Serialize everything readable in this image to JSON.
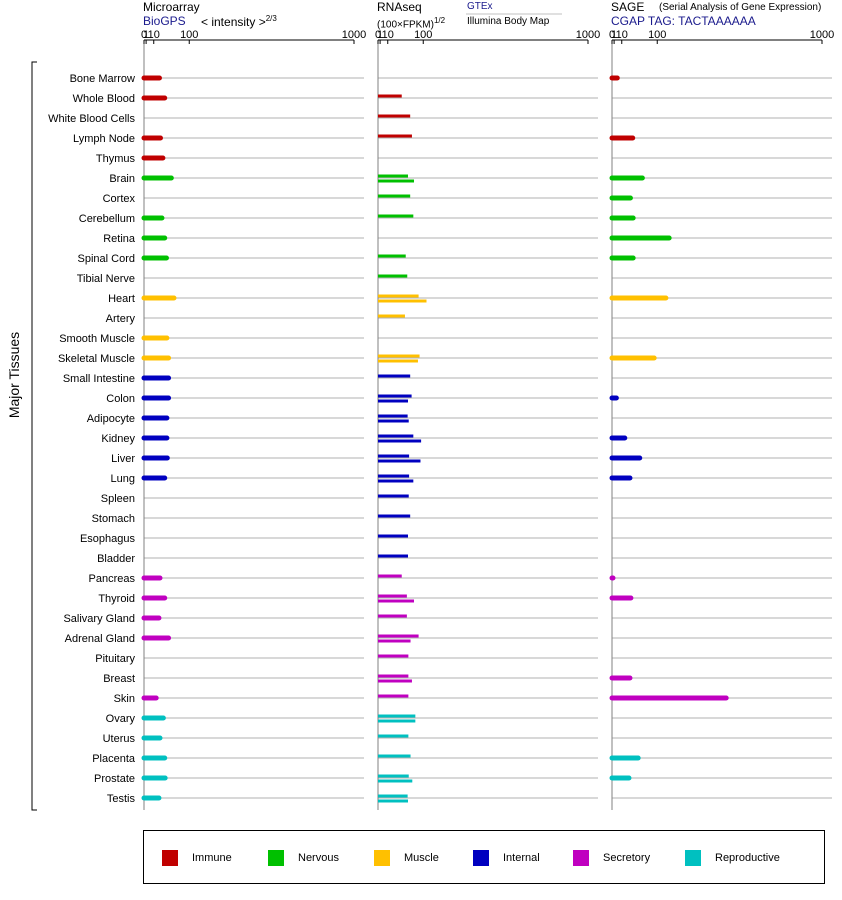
{
  "headers": {
    "microarray": {
      "title": "Microarray",
      "source": "BioGPS",
      "unit_main": "< intensity >",
      "unit_exp": "2/3"
    },
    "rnaseq": {
      "title": "RNAseq",
      "unit_main": "(100×FPKM)",
      "unit_exp": "1/2",
      "source_1": "GTEx",
      "source_2": "Illumina Body Map"
    },
    "sage": {
      "title": "SAGE",
      "subtitle": "(Serial Analysis of Gene Expression)",
      "source": "CGAP TAG: TACTAAAAAA"
    }
  },
  "axis_label": "Major Tissues",
  "colors": {
    "Immune": "#c00000",
    "Nervous": "#00c000",
    "Muscle": "#ffc000",
    "Internal": "#0000c0",
    "Secretory": "#c000c0",
    "Reproductive": "#00c0c0"
  },
  "legend": [
    {
      "label": "Immune",
      "color": "#c00000"
    },
    {
      "label": "Nervous",
      "color": "#00c000"
    },
    {
      "label": "Muscle",
      "color": "#ffc000"
    },
    {
      "label": "Internal",
      "color": "#0000c0"
    },
    {
      "label": "Secretory",
      "color": "#c000c0"
    },
    {
      "label": "Reproductive",
      "color": "#00c0c0"
    }
  ],
  "chart_data": {
    "type": "bar",
    "scale": "power (ticks 0, 1, 10, 100, 1000)",
    "categories": [
      "Bone Marrow",
      "Whole Blood",
      "White Blood Cells",
      "Lymph Node",
      "Thymus",
      "Brain",
      "Cortex",
      "Cerebellum",
      "Retina",
      "Spinal Cord",
      "Tibial Nerve",
      "Heart",
      "Artery",
      "Smooth Muscle",
      "Skeletal Muscle",
      "Small Intestine",
      "Colon",
      "Adipocyte",
      "Kidney",
      "Liver",
      "Lung",
      "Spleen",
      "Stomach",
      "Esophagus",
      "Bladder",
      "Pancreas",
      "Thyroid",
      "Salivary Gland",
      "Adrenal Gland",
      "Pituitary",
      "Breast",
      "Skin",
      "Ovary",
      "Uterus",
      "Placenta",
      "Prostate",
      "Testis"
    ],
    "groups": [
      "Immune",
      "Immune",
      "Immune",
      "Immune",
      "Immune",
      "Nervous",
      "Nervous",
      "Nervous",
      "Nervous",
      "Nervous",
      "Nervous",
      "Muscle",
      "Muscle",
      "Muscle",
      "Muscle",
      "Internal",
      "Internal",
      "Internal",
      "Internal",
      "Internal",
      "Internal",
      "Internal",
      "Internal",
      "Internal",
      "Internal",
      "Secretory",
      "Secretory",
      "Secretory",
      "Secretory",
      "Secretory",
      "Secretory",
      "Secretory",
      "Reproductive",
      "Reproductive",
      "Reproductive",
      "Reproductive",
      "Reproductive"
    ],
    "panels": [
      {
        "name": "Microarray",
        "ticks": [
          0,
          1,
          10,
          100,
          1000
        ],
        "values": [
          20,
          31,
          null,
          22,
          27,
          47,
          null,
          25,
          31,
          35,
          null,
          54,
          null,
          36,
          40,
          40,
          40,
          36,
          36,
          37,
          31,
          null,
          null,
          null,
          null,
          21,
          31,
          19,
          40,
          null,
          null,
          14,
          28,
          21,
          31,
          32,
          19
        ]
      },
      {
        "name": "RNAseq GTEx",
        "ticks": [
          0,
          1,
          10,
          100,
          1000
        ],
        "values": [
          null,
          38,
          60,
          65,
          null,
          54,
          60,
          69,
          null,
          48,
          52,
          85,
          46,
          null,
          88,
          60,
          64,
          53,
          69,
          57,
          57,
          56,
          60,
          54,
          54,
          38,
          51,
          51,
          85,
          55,
          55,
          55,
          75,
          55,
          61,
          56,
          53
        ]
      },
      {
        "name": "RNAseq Illumina Body Map",
        "ticks": [
          0,
          1,
          10,
          100,
          1000
        ],
        "values": [
          null,
          null,
          null,
          null,
          null,
          71,
          null,
          null,
          null,
          null,
          null,
          111,
          null,
          null,
          83,
          null,
          54,
          56,
          93,
          91,
          69,
          null,
          null,
          null,
          null,
          null,
          71,
          null,
          61,
          null,
          65,
          null,
          75,
          null,
          null,
          66,
          54
        ]
      },
      {
        "name": "SAGE",
        "ticks": [
          0,
          1,
          10,
          100,
          1000
        ],
        "values": [
          4,
          null,
          null,
          31,
          null,
          55,
          26,
          32,
          142,
          32,
          null,
          130,
          null,
          null,
          90,
          null,
          3,
          null,
          15,
          48,
          25,
          null,
          null,
          null,
          null,
          0.1,
          27,
          null,
          null,
          null,
          25,
          401,
          null,
          null,
          44,
          23,
          null
        ]
      }
    ]
  }
}
